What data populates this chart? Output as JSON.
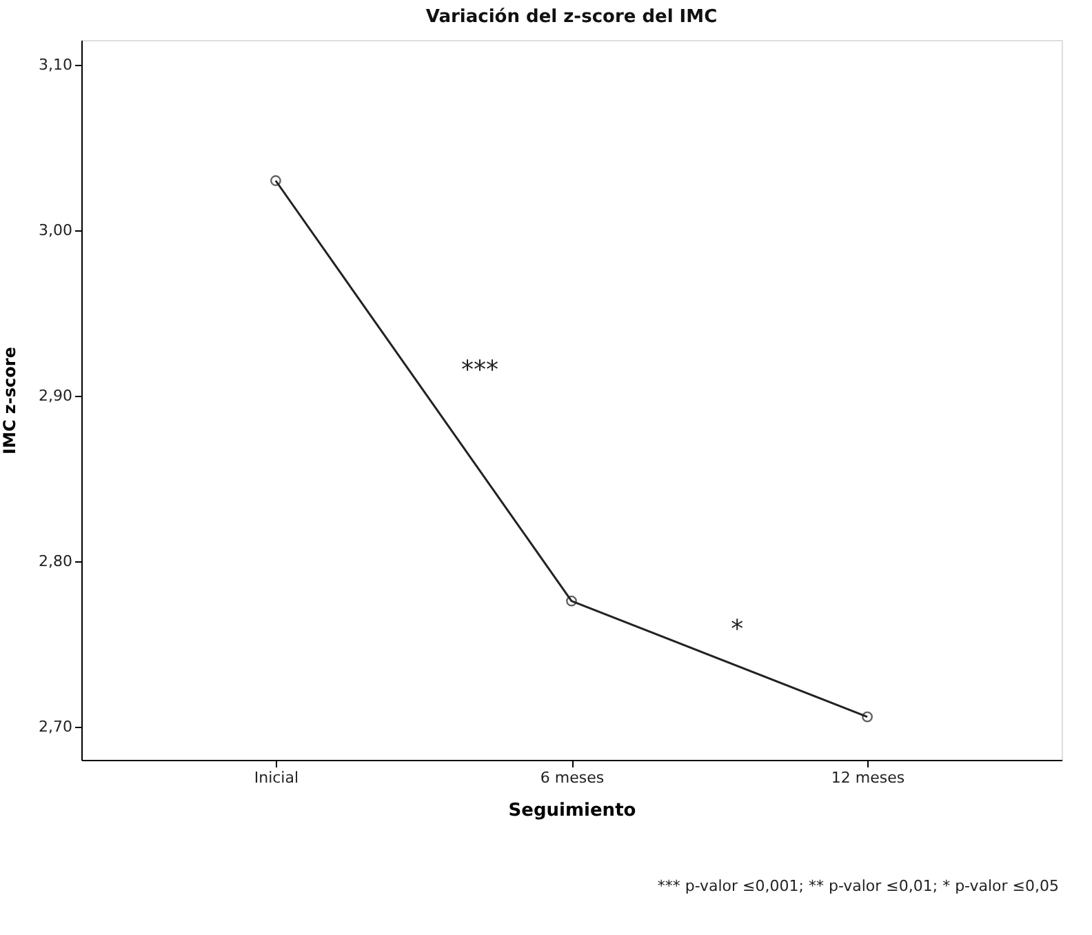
{
  "chart_data": {
    "type": "line",
    "title": "Variación del z-score del IMC",
    "xlabel": "Seguimiento",
    "ylabel": "IMC z-score",
    "categories": [
      "Inicial",
      "6 meses",
      "12 meses"
    ],
    "series": [
      {
        "color": "#222222",
        "values": [
          3.03,
          2.776,
          2.706
        ]
      }
    ],
    "ylim": [
      2.68,
      3.115
    ],
    "yticks": [
      {
        "value": 2.7,
        "label": "2,70"
      },
      {
        "value": 2.8,
        "label": "2,80"
      },
      {
        "value": 2.9,
        "label": "2,90"
      },
      {
        "value": 3.0,
        "label": "3,00"
      },
      {
        "value": 3.1,
        "label": "3,10"
      }
    ],
    "annotations": [
      "***",
      "*",
      "*** p-valor ≤0,001; ** p-valor ≤0,01; * p-valor ≤0,05"
    ],
    "grid": false,
    "marker": "circle",
    "line_style": "solid"
  }
}
